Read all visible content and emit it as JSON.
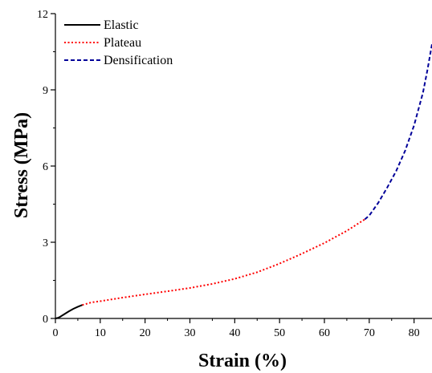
{
  "chart_data": {
    "type": "line",
    "xlabel": "Strain (%)",
    "ylabel": "Stress (MPa)",
    "xlim": [
      0,
      84
    ],
    "ylim": [
      0,
      12
    ],
    "x_ticks": [
      0,
      10,
      20,
      30,
      40,
      50,
      60,
      70,
      80
    ],
    "y_ticks": [
      0,
      3,
      6,
      9,
      12
    ],
    "grid": false,
    "legend_position": "top-left",
    "series": [
      {
        "name": "Elastic",
        "color": "#000000",
        "line_style": "solid",
        "x": [
          0,
          0.5,
          1,
          2,
          3,
          4,
          5,
          6
        ],
        "y": [
          0,
          0.02,
          0.06,
          0.17,
          0.28,
          0.38,
          0.46,
          0.53
        ]
      },
      {
        "name": "Plateau",
        "color": "#ff0000",
        "line_style": "dotted",
        "x": [
          6,
          8,
          10,
          15,
          20,
          25,
          30,
          35,
          40,
          45,
          50,
          55,
          60,
          65,
          69
        ],
        "y": [
          0.53,
          0.63,
          0.68,
          0.82,
          0.95,
          1.07,
          1.2,
          1.36,
          1.56,
          1.82,
          2.16,
          2.55,
          2.97,
          3.45,
          3.9
        ]
      },
      {
        "name": "Densification",
        "color": "#000099",
        "line_style": "dashed",
        "x": [
          69,
          70,
          72,
          74,
          76,
          78,
          80,
          82,
          83,
          84
        ],
        "y": [
          3.9,
          4.05,
          4.55,
          5.15,
          5.8,
          6.6,
          7.6,
          8.9,
          9.8,
          10.8
        ]
      }
    ]
  }
}
